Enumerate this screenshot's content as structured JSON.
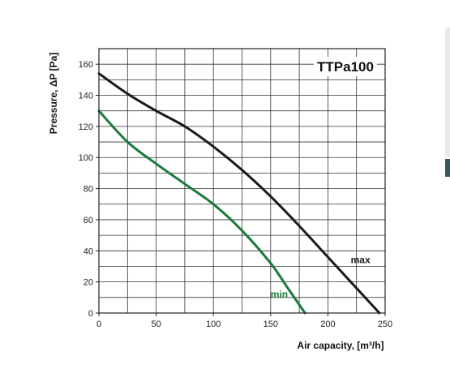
{
  "chart_data": {
    "type": "line",
    "title": "TTPa100",
    "xlabel": "Air capacity, [m³/h]",
    "ylabel": "Pressure, ΔP [Pa]",
    "xlim": [
      0,
      250
    ],
    "ylim": [
      0,
      170
    ],
    "x_ticks": [
      0,
      50,
      100,
      150,
      200,
      250
    ],
    "x_tick_labels": [
      "0",
      "50",
      "100",
      "150",
      "200",
      "250"
    ],
    "y_ticks": [
      0,
      20,
      40,
      60,
      80,
      100,
      120,
      140,
      160
    ],
    "y_tick_labels": [
      "0",
      "20",
      "40",
      "60",
      "80",
      "100",
      "120",
      "140",
      "160"
    ],
    "grid": true,
    "series": [
      {
        "name": "max",
        "color": "#1a1a1a",
        "x": [
          0,
          25,
          50,
          75,
          100,
          125,
          150,
          175,
          200,
          225,
          245
        ],
        "y": [
          154,
          141,
          130,
          120,
          107,
          92,
          75,
          56,
          36,
          16,
          0
        ]
      },
      {
        "name": "min",
        "color": "#1a7a3c",
        "x": [
          0,
          25,
          50,
          75,
          100,
          125,
          150,
          165,
          180
        ],
        "y": [
          130,
          110,
          96,
          83,
          70,
          53,
          32,
          16,
          0
        ]
      }
    ]
  }
}
